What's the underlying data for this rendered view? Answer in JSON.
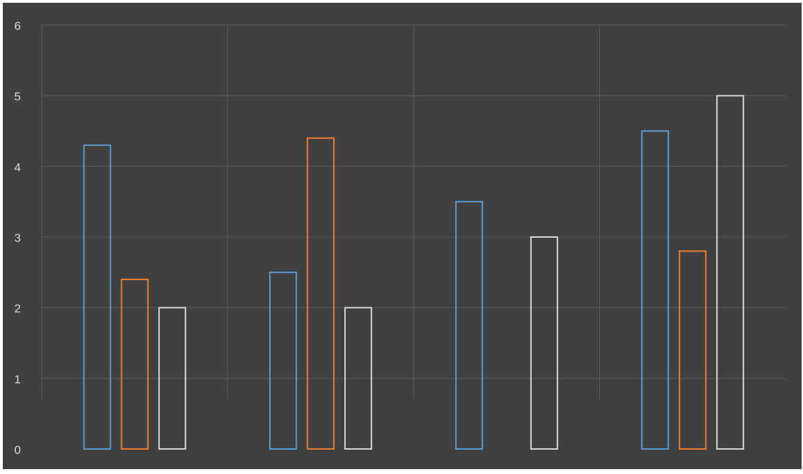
{
  "colors": {
    "background": "#404040",
    "frame": "#ffffff",
    "grid": "#595959",
    "tick_text": "#d9d9d9",
    "series": [
      "#5b9bd5",
      "#ed7d31",
      "#d9d9d9"
    ]
  },
  "chart_data": {
    "type": "bar",
    "title": "",
    "xlabel": "",
    "ylabel": "",
    "ylim": [
      0,
      6
    ],
    "yticks": [
      "0",
      "1",
      "2",
      "3",
      "4",
      "5",
      "6"
    ],
    "categories": [
      "",
      "",
      "",
      ""
    ],
    "grid": true,
    "legend": "none",
    "bar_style": "outline",
    "series": [
      {
        "values": [
          4.3,
          2.5,
          3.5,
          4.5
        ]
      },
      {
        "values": [
          2.4,
          4.4,
          0,
          2.8
        ]
      },
      {
        "values": [
          2.0,
          2.0,
          3.0,
          5.0
        ]
      }
    ]
  }
}
